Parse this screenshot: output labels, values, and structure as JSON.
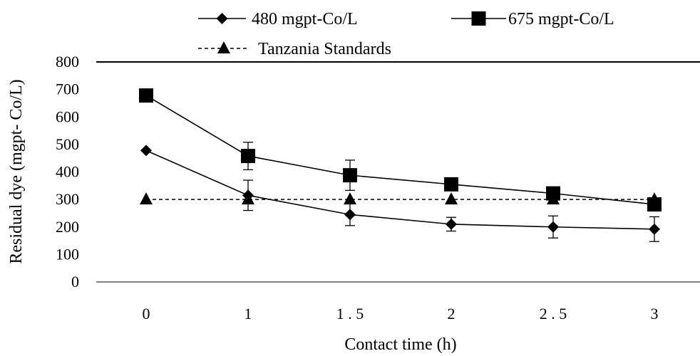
{
  "chart_data": {
    "type": "line",
    "title": "",
    "xlabel": "Contact time (h)",
    "ylabel": "Residual dye  (mgpt- Co/L)",
    "categories": [
      "0",
      "1",
      "1.5",
      "2",
      "2.5",
      "3"
    ],
    "category_tick_labels": [
      "0",
      "1",
      "1 . 5",
      "2",
      "2 . 5",
      "3"
    ],
    "ylim": [
      0,
      800
    ],
    "yticks": [
      0,
      100,
      200,
      300,
      400,
      500,
      600,
      700,
      800
    ],
    "grid": false,
    "legend_position": "top",
    "series": [
      {
        "name": "480 mgpt-Co/L",
        "marker": "diamond",
        "line_style": "solid",
        "color": "#000000",
        "values": [
          478,
          315,
          245,
          210,
          200,
          192
        ],
        "error": [
          0,
          55,
          40,
          25,
          40,
          45
        ]
      },
      {
        "name": "675 mgpt-Co/L",
        "marker": "square",
        "line_style": "solid",
        "color": "#000000",
        "values": [
          678,
          458,
          388,
          355,
          322,
          282
        ],
        "error": [
          0,
          50,
          55,
          0,
          0,
          0
        ]
      },
      {
        "name": "Tanzania Standards",
        "marker": "triangle",
        "line_style": "dashed",
        "color": "#000000",
        "values": [
          300,
          300,
          300,
          300,
          300,
          300
        ],
        "error": [
          0,
          0,
          0,
          0,
          0,
          0
        ]
      }
    ]
  }
}
